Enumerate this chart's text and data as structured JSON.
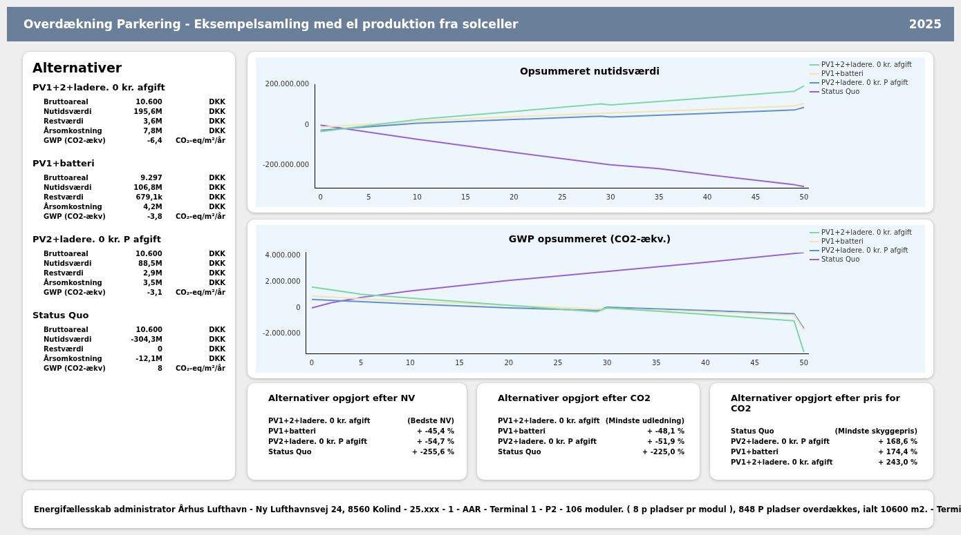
{
  "chart_data": [
    {
      "type": "other",
      "title": "Overdækning Parkering - Eksempelsamling med el produktion fra solceller",
      "subtitle": "2025"
    },
    {
      "type": "other",
      "title": "Alternativer"
    },
    {
      "type": "other",
      "title": "PV1+2+ladere. 0 kr. afgift",
      "annotations": [
        "Bruttoareal",
        "10.600",
        "DKK",
        "Nutidsværdi",
        "195,6M",
        "DKK",
        "Restværdi",
        "3,6M",
        "DKK",
        "Årsomkostning",
        "7,8M",
        "DKK",
        "GWP (CO2-ækv)",
        "-6,4",
        "CO₂-eq/m²/år"
      ]
    },
    {
      "type": "other",
      "title": "PV1+batteri",
      "annotations": [
        "Bruttoareal",
        "9.297",
        "DKK",
        "Nutidsværdi",
        "106,8M",
        "DKK",
        "Restværdi",
        "679,1k",
        "DKK",
        "Årsomkostning",
        "4,2M",
        "DKK",
        "GWP (CO2-ækv)",
        "-3,8",
        "CO₂-eq/m²/år"
      ]
    },
    {
      "type": "other",
      "title": "PV2+ladere. 0 kr. P afgift",
      "annotations": [
        "Bruttoareal",
        "10.600",
        "DKK",
        "Nutidsværdi",
        "88,5M",
        "DKK",
        "Restværdi",
        "2,9M",
        "DKK",
        "Årsomkostning",
        "3,5M",
        "DKK",
        "GWP (CO2-ækv)",
        "-3,1",
        "CO₂-eq/m²/år"
      ]
    },
    {
      "type": "other",
      "title": "Status Quo",
      "annotations": [
        "Bruttoareal",
        "10.600",
        "DKK",
        "Nutidsværdi",
        "-304,3M",
        "DKK",
        "Restværdi",
        "0",
        "DKK",
        "Årsomkostning",
        "-12,1M",
        "DKK",
        "GWP (CO2-ækv)",
        "8",
        "CO₂-eq/m²/år"
      ]
    },
    {
      "type": "line",
      "title": "Opsummeret nutidsværdi",
      "legend": "right",
      "xlim": [
        -0.6,
        50.5
      ],
      "xticks": [
        0,
        5,
        10,
        15,
        20,
        25,
        30,
        35,
        40,
        45,
        50
      ],
      "ylim": [
        -310000000,
        200000000
      ],
      "yticks": [
        {
          "value": -200000000,
          "label": "-200.000.000"
        },
        0,
        {
          "value": 200000000,
          "label": "200.000.000"
        }
      ],
      "series": [
        {
          "name": "PV1+2+ladere. 0 kr. afgift",
          "color": "#7dd8a6",
          "x": [
            0,
            10,
            20,
            29,
            30,
            40,
            49,
            50
          ],
          "values": [
            -32000000,
            28000000,
            68000000,
            105000000,
            100000000,
            135000000,
            168000000,
            195000000
          ]
        },
        {
          "name": "PV1+batteri",
          "color": "#f3e4b3",
          "x": [
            0,
            10,
            20,
            29,
            30,
            40,
            49,
            50
          ],
          "values": [
            -10000000,
            20000000,
            42000000,
            58000000,
            60000000,
            78000000,
            95000000,
            107000000
          ]
        },
        {
          "name": "PV2+ladere. 0 kr. P afgift",
          "color": "#5f8fd4",
          "x": [
            0,
            10,
            20,
            29,
            30,
            40,
            49,
            50
          ],
          "values": [
            -25000000,
            10000000,
            28000000,
            45000000,
            40000000,
            58000000,
            75000000,
            88000000
          ]
        },
        {
          "name": "Status Quo",
          "color": "#9a5fe0",
          "x": [
            0,
            10,
            20,
            29,
            30,
            35,
            40,
            49,
            50
          ],
          "values": [
            0,
            -70000000,
            -135000000,
            -190000000,
            -196000000,
            -215000000,
            -245000000,
            -295000000,
            -304000000
          ]
        }
      ]
    },
    {
      "type": "line",
      "title": "GWP opsummeret (CO2-ækv.)",
      "legend": "right",
      "xlim": [
        -0.6,
        50.5
      ],
      "xticks": [
        0,
        5,
        10,
        15,
        20,
        25,
        30,
        35,
        40,
        45,
        50
      ],
      "ylim": [
        -3500000,
        4250000
      ],
      "yticks": [
        {
          "value": -2000000,
          "label": "-2.000.000"
        },
        0,
        {
          "value": 2000000,
          "label": "2.000.000"
        },
        {
          "value": 4000000,
          "label": "4.000.000"
        }
      ],
      "series": [
        {
          "name": "PV1+2+ladere. 0 kr. afgift",
          "color": "#7dd8a6",
          "x": [
            0,
            5,
            10,
            20,
            29,
            30,
            40,
            49,
            50
          ],
          "values": [
            1600000,
            1050000,
            750000,
            200000,
            -300000,
            0,
            -500000,
            -1000000,
            -3400000
          ]
        },
        {
          "name": "PV1+batteri",
          "color": "#f3e4b3",
          "x": [
            0,
            10,
            20,
            29,
            30,
            40,
            49,
            50
          ],
          "values": [
            900000,
            500000,
            200000,
            -100000,
            -50000,
            -300000,
            -550000,
            -1700000
          ]
        },
        {
          "name": "PV2+ladere. 0 kr. P afgift",
          "color": "#5f8fd4",
          "x": [
            0,
            10,
            20,
            29,
            30,
            40,
            49,
            50
          ],
          "values": [
            650000,
            300000,
            0,
            -200000,
            50000,
            -200000,
            -450000,
            -1600000
          ]
        },
        {
          "name": "Status Quo",
          "color": "#9a5fe0",
          "x": [
            0,
            2,
            5,
            10,
            20,
            30,
            40,
            50
          ],
          "values": [
            0,
            400000,
            800000,
            1300000,
            2100000,
            2800000,
            3500000,
            4250000
          ]
        }
      ]
    },
    {
      "type": "other",
      "title": "Alternativer opgjort efter NV",
      "annotations": [
        "PV1+2+ladere. 0 kr. afgift",
        "(Bedste NV)",
        "PV1+batteri",
        "+ -45,4 %",
        "PV2+ladere. 0 kr. P afgift",
        "+ -54,7 %",
        "Status Quo",
        "+ -255,6 %"
      ]
    },
    {
      "type": "other",
      "title": "Alternativer opgjort efter CO2",
      "annotations": [
        "PV1+2+ladere. 0 kr. afgift",
        "(Mindste udledning)",
        "PV1+batteri",
        "+ -48,1 %",
        "PV2+ladere. 0 kr. P afgift",
        "+ -51,9 %",
        "Status Quo",
        "+ -225,0 %"
      ]
    },
    {
      "type": "other",
      "title": "Alternativer opgjort efter pris for CO2",
      "annotations": [
        "Status Quo",
        "(Mindste skyggepris)",
        "PV2+ladere. 0 kr. P afgift",
        "+ 168,6 %",
        "PV1+batteri",
        "+ 174,4 %",
        "PV1+2+ladere. 0 kr. afgift",
        "+ 243,0 %"
      ]
    },
    {
      "type": "other",
      "annotations": [
        "Energifællesskab administrator Århus Lufthavn -  Ny Lufthavnsvej 24, 8560 Kolind - 25.xxx - 1 - AAR - Terminal 1 - P2 - 106 moduler. ( 8 p pladser pr modul ), 848 P pladser overdækkes, ialt 10600 m2. - Termi"
      ]
    }
  ]
}
